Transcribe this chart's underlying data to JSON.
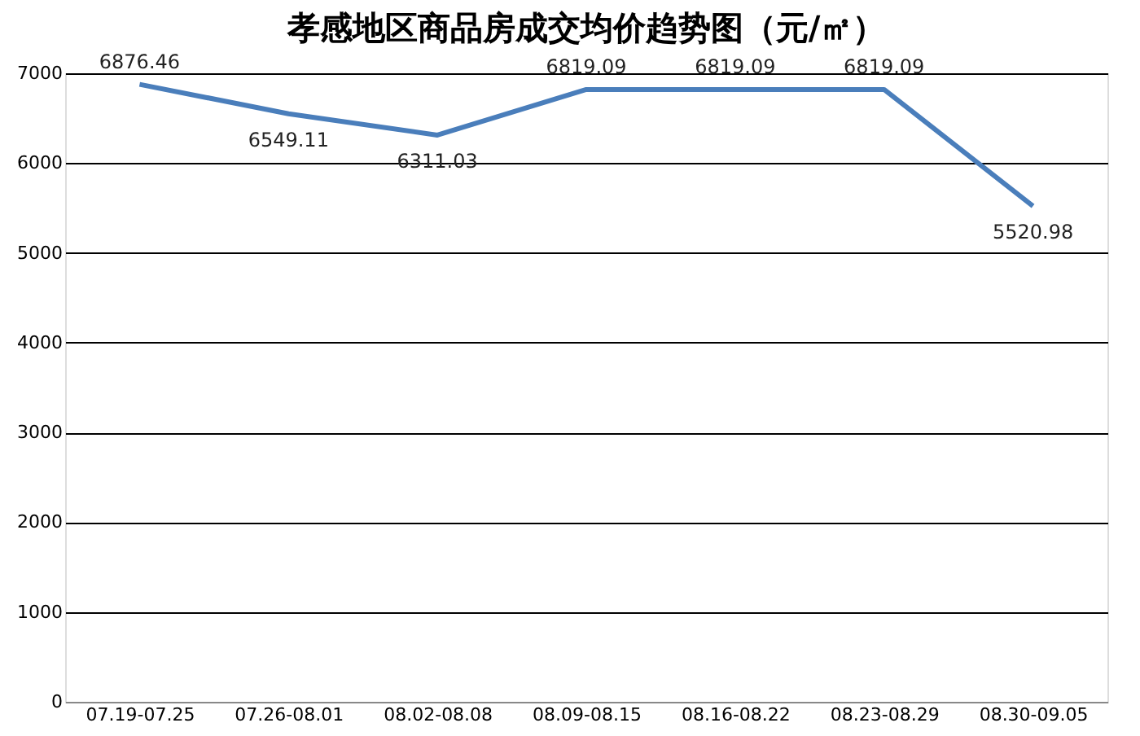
{
  "chart_data": {
    "type": "line",
    "title": "孝感地区商品房成交均价趋势图（元/㎡）",
    "categories": [
      "07.19-07.25",
      "07.26-08.01",
      "08.02-08.08",
      "08.09-08.15",
      "08.16-08.22",
      "08.23-08.29",
      "08.30-09.05"
    ],
    "series": [
      {
        "color": "#4a7ebb",
        "values": [
          6876.46,
          6549.11,
          6311.03,
          6819.09,
          6819.09,
          6819.09,
          5520.98
        ]
      }
    ],
    "ylim": [
      0,
      7000
    ],
    "yticks": [
      0,
      1000,
      2000,
      3000,
      4000,
      5000,
      6000,
      7000
    ],
    "grid": "y",
    "marker": "none",
    "line_style": "solid",
    "data_labels": true
  }
}
